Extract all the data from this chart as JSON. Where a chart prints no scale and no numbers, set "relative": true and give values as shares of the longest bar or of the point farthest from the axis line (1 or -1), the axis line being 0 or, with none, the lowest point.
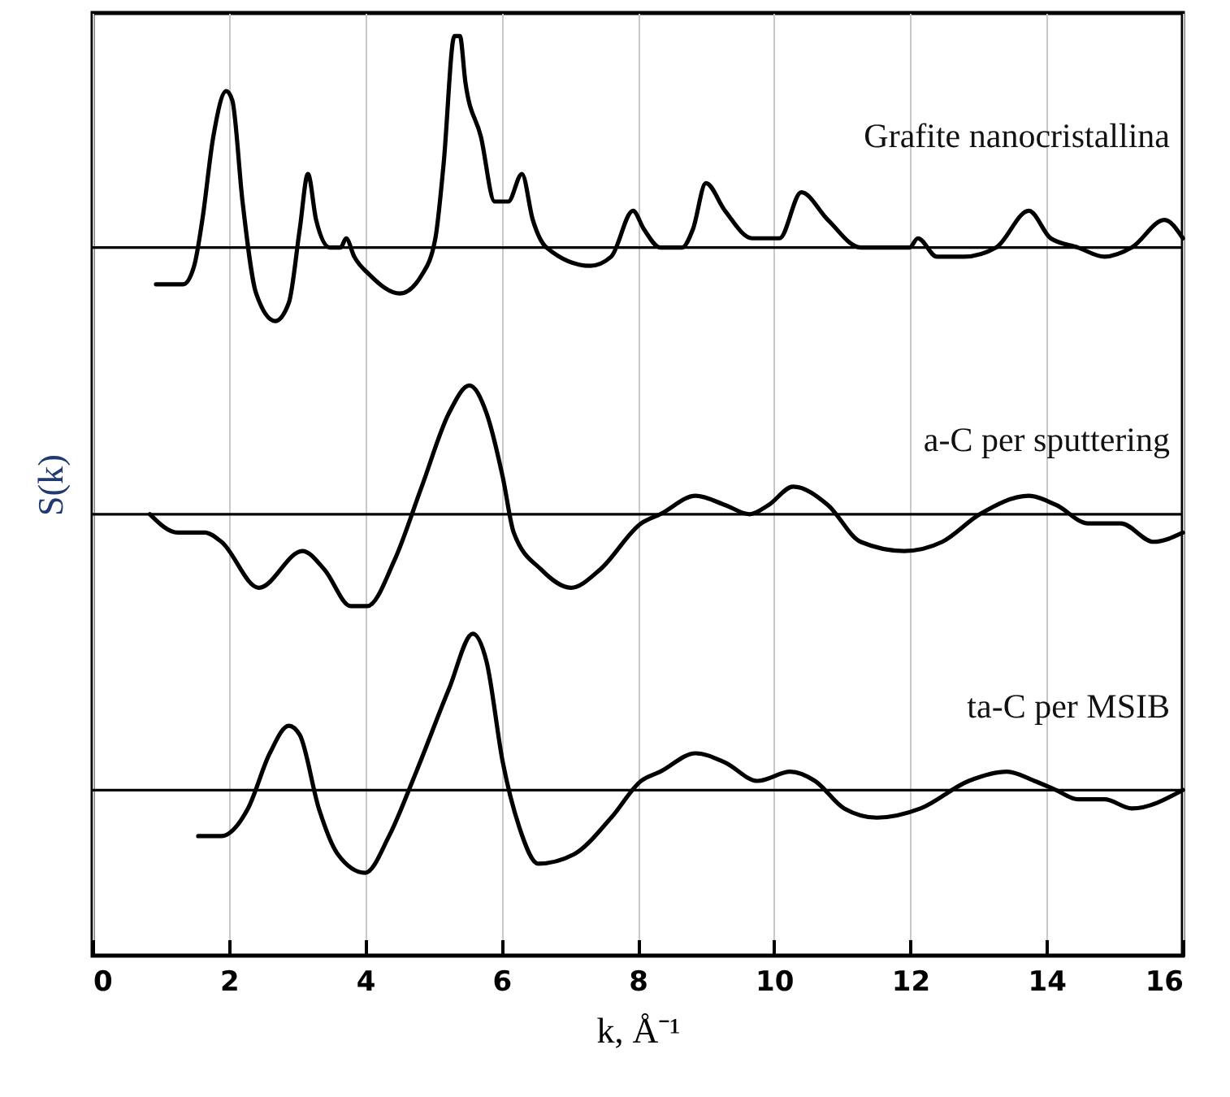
{
  "chart_data": {
    "type": "line",
    "relative": true,
    "xlabel": "k, Å⁻¹",
    "ylabel": "S(k)",
    "xlim": [
      0,
      16
    ],
    "xticks": [
      0,
      2,
      4,
      6,
      8,
      10,
      12,
      14,
      16
    ],
    "grid": "x",
    "legend": false,
    "line_style": "solid",
    "series": [
      {
        "name": "Grafite nanocristallina",
        "color": "#000000",
        "x": [
          0.93,
          1.33,
          1.49,
          1.61,
          1.77,
          1.96,
          2.05,
          2.2,
          2.4,
          2.68,
          2.88,
          3.04,
          3.16,
          3.28,
          3.48,
          3.64,
          3.72,
          3.84,
          4.07,
          4.51,
          4.83,
          5.03,
          5.15,
          5.31,
          5.39,
          5.47,
          5.7,
          5.9,
          6.1,
          6.3,
          6.46,
          6.66,
          7.3,
          7.61,
          7.93,
          8.09,
          8.33,
          8.65,
          8.81,
          9.0,
          9.28,
          9.68,
          10.08,
          10.4,
          10.79,
          11.27,
          11.75,
          11.99,
          12.11,
          12.39,
          12.79,
          13.26,
          13.74,
          14.06,
          14.46,
          14.85,
          15.25,
          15.73,
          16.0
        ],
        "values": [
          0.73,
          0.73,
          0.75,
          0.8,
          0.89,
          0.94,
          0.93,
          0.82,
          0.72,
          0.69,
          0.71,
          0.79,
          0.85,
          0.8,
          0.77,
          0.77,
          0.78,
          0.76,
          0.74,
          0.72,
          0.74,
          0.78,
          0.86,
          1.0,
          1.0,
          0.95,
          0.89,
          0.82,
          0.82,
          0.85,
          0.8,
          0.77,
          0.75,
          0.76,
          0.81,
          0.79,
          0.77,
          0.77,
          0.79,
          0.84,
          0.81,
          0.78,
          0.78,
          0.83,
          0.8,
          0.77,
          0.77,
          0.77,
          0.78,
          0.76,
          0.76,
          0.77,
          0.81,
          0.78,
          0.77,
          0.76,
          0.77,
          0.8,
          0.78
        ]
      },
      {
        "name": "a-C per sputtering",
        "color": "#000000",
        "x": [
          0.84,
          1.25,
          1.65,
          1.89,
          2.44,
          3.08,
          3.4,
          3.79,
          4.03,
          4.43,
          4.83,
          5.23,
          5.53,
          5.78,
          6.02,
          6.18,
          6.58,
          7.02,
          7.45,
          8.05,
          8.33,
          8.85,
          9.28,
          9.64,
          9.92,
          10.28,
          10.79,
          11.27,
          11.91,
          12.47,
          13.02,
          13.74,
          14.14,
          14.61,
          15.09,
          15.57,
          16.0
        ],
        "values": [
          0.48,
          0.46,
          0.46,
          0.45,
          0.4,
          0.44,
          0.42,
          0.38,
          0.38,
          0.43,
          0.51,
          0.59,
          0.62,
          0.59,
          0.52,
          0.46,
          0.42,
          0.4,
          0.42,
          0.47,
          0.48,
          0.5,
          0.49,
          0.48,
          0.49,
          0.51,
          0.49,
          0.45,
          0.44,
          0.45,
          0.48,
          0.5,
          0.49,
          0.47,
          0.47,
          0.45,
          0.46
        ]
      },
      {
        "name": "ta-C per MSIB",
        "color": "#000000",
        "x": [
          1.55,
          1.89,
          2.28,
          2.6,
          2.88,
          3.04,
          3.32,
          3.6,
          4.0,
          4.35,
          4.75,
          5.23,
          5.58,
          5.78,
          6.02,
          6.26,
          6.54,
          7.06,
          7.61,
          8.05,
          8.33,
          8.85,
          9.28,
          9.76,
          10.24,
          10.6,
          11.03,
          11.51,
          12.15,
          12.86,
          13.42,
          13.82,
          14.14,
          14.46,
          14.85,
          15.25,
          16.0
        ],
        "values": [
          0.13,
          0.13,
          0.16,
          0.22,
          0.25,
          0.24,
          0.16,
          0.11,
          0.09,
          0.13,
          0.2,
          0.29,
          0.35,
          0.32,
          0.21,
          0.14,
          0.1,
          0.11,
          0.15,
          0.19,
          0.2,
          0.22,
          0.21,
          0.19,
          0.2,
          0.19,
          0.16,
          0.15,
          0.16,
          0.19,
          0.2,
          0.19,
          0.18,
          0.17,
          0.17,
          0.16,
          0.18
        ]
      }
    ],
    "ref_lines": [
      {
        "axis": "y",
        "value": 0.77,
        "color": "#000000"
      },
      {
        "axis": "y",
        "value": 0.48,
        "color": "#000000"
      },
      {
        "axis": "y",
        "value": 0.18,
        "color": "#000000"
      }
    ]
  }
}
